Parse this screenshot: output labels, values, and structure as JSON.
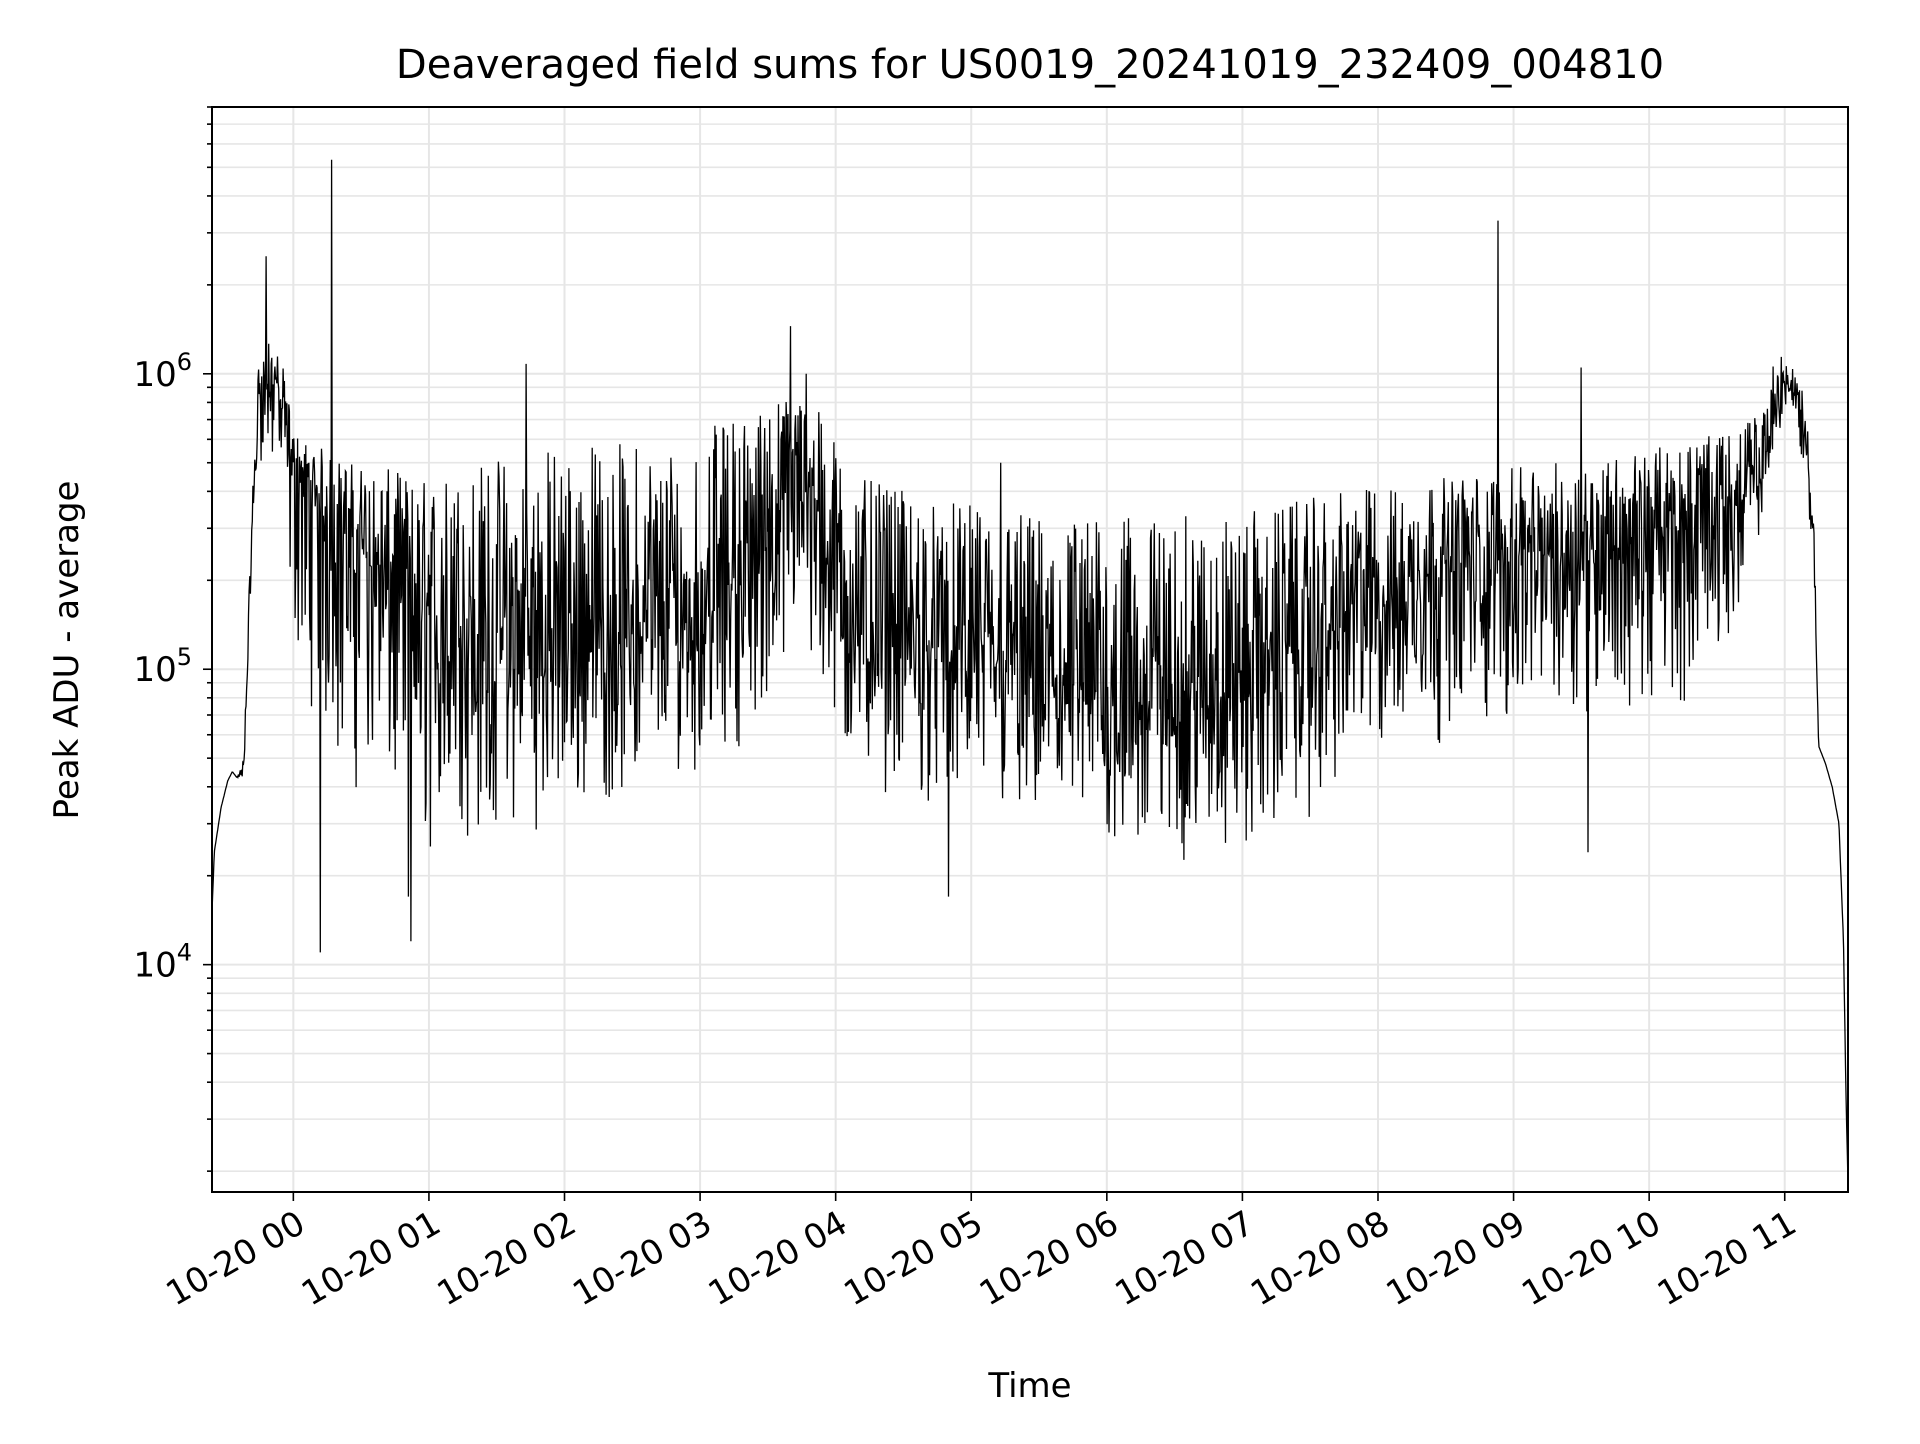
{
  "chart_data": {
    "type": "line",
    "title": "Deaveraged field sums for US0019_20241019_232409_004810",
    "xlabel": "Time",
    "ylabel": "Peak ADU - average",
    "yscale": "log",
    "ylim": [
      1700,
      8000000
    ],
    "xlim": [
      "2024-10-19 23:24",
      "2024-10-20 11:28"
    ],
    "x_ticks": [
      {
        "time": "2024-10-20 00:00",
        "label": "10-20 00"
      },
      {
        "time": "2024-10-20 01:00",
        "label": "10-20 01"
      },
      {
        "time": "2024-10-20 02:00",
        "label": "10-20 02"
      },
      {
        "time": "2024-10-20 03:00",
        "label": "10-20 03"
      },
      {
        "time": "2024-10-20 04:00",
        "label": "10-20 04"
      },
      {
        "time": "2024-10-20 05:00",
        "label": "10-20 05"
      },
      {
        "time": "2024-10-20 06:00",
        "label": "10-20 06"
      },
      {
        "time": "2024-10-20 07:00",
        "label": "10-20 07"
      },
      {
        "time": "2024-10-20 08:00",
        "label": "10-20 08"
      },
      {
        "time": "2024-10-20 09:00",
        "label": "10-20 09"
      },
      {
        "time": "2024-10-20 10:00",
        "label": "10-20 10"
      },
      {
        "time": "2024-10-20 11:00",
        "label": "10-20 11"
      }
    ],
    "y_ticks": [
      {
        "value": 10000,
        "base": "10",
        "exp": "4"
      },
      {
        "value": 100000,
        "base": "10",
        "exp": "5"
      },
      {
        "value": 1000000,
        "base": "10",
        "exp": "6"
      }
    ],
    "grid": true,
    "line_color": "#000000",
    "grid_color": "#e6e6e6",
    "series": [
      {
        "x": [
          "2024-10-19 23:24",
          "2024-10-19 23:25",
          "2024-10-19 23:28",
          "2024-10-19 23:31",
          "2024-10-19 23:33",
          "2024-10-19 23:35",
          "2024-10-19 23:38",
          "2024-10-19 23:41",
          "2024-10-19 23:44",
          "2024-10-19 23:46",
          "2024-10-19 23:50",
          "2024-10-19 23:55",
          "2024-10-20 00:00",
          "2024-10-20 00:05",
          "2024-10-20 00:10",
          "2024-10-20 00:15",
          "2024-10-20 00:20",
          "2024-10-20 00:30",
          "2024-10-20 00:40",
          "2024-10-20 00:50",
          "2024-10-20 00:58",
          "2024-10-20 01:10",
          "2024-10-20 01:30",
          "2024-10-20 02:00",
          "2024-10-20 02:30",
          "2024-10-20 03:00",
          "2024-10-20 03:20",
          "2024-10-20 03:35",
          "2024-10-20 03:45",
          "2024-10-20 03:55",
          "2024-10-20 04:10",
          "2024-10-20 04:30",
          "2024-10-20 05:00",
          "2024-10-20 05:30",
          "2024-10-20 06:00",
          "2024-10-20 06:30",
          "2024-10-20 07:00",
          "2024-10-20 07:30",
          "2024-10-20 08:00",
          "2024-10-20 08:30",
          "2024-10-20 09:00",
          "2024-10-20 09:30",
          "2024-10-20 10:00",
          "2024-10-20 10:20",
          "2024-10-20 10:40",
          "2024-10-20 10:50",
          "2024-10-20 10:55",
          "2024-10-20 11:00",
          "2024-10-20 11:05",
          "2024-10-20 11:10",
          "2024-10-20 11:13",
          "2024-10-20 11:15",
          "2024-10-20 11:18",
          "2024-10-20 11:21",
          "2024-10-20 11:24",
          "2024-10-20 11:26",
          "2024-10-20 11:27",
          "2024-10-20 11:28"
        ],
        "median": [
          15000,
          24000,
          34000,
          42000,
          45000,
          43000,
          45000,
          200000,
          700000,
          900000,
          950000,
          800000,
          480000,
          380000,
          340000,
          320000,
          300000,
          250000,
          190000,
          160000,
          130000,
          120000,
          100000,
          110000,
          120000,
          140000,
          200000,
          300000,
          420000,
          280000,
          130000,
          120000,
          100000,
          85000,
          75000,
          72000,
          85000,
          115000,
          170000,
          210000,
          230000,
          250000,
          260000,
          300000,
          350000,
          450000,
          700000,
          900000,
          820000,
          550000,
          250000,
          55000,
          48000,
          40000,
          30000,
          12000,
          4000,
          1800
        ],
        "low": [
          15000,
          24000,
          34000,
          42000,
          45000,
          43000,
          40000,
          180000,
          450000,
          500000,
          450000,
          350000,
          110000,
          90000,
          60000,
          45000,
          40000,
          35000,
          30000,
          25000,
          20000,
          22000,
          25000,
          30000,
          35000,
          45000,
          55000,
          80000,
          100000,
          50000,
          40000,
          35000,
          30000,
          25000,
          22000,
          20000,
          22000,
          30000,
          45000,
          55000,
          60000,
          70000,
          60000,
          80000,
          150000,
          300000,
          550000,
          700000,
          650000,
          400000,
          200000,
          55000,
          48000,
          40000,
          30000,
          12000,
          4000,
          1800
        ],
        "high": [
          15000,
          24000,
          34000,
          42000,
          45000,
          43000,
          50000,
          250000,
          1100000,
          1200000,
          1300000,
          1100000,
          650000,
          600000,
          580000,
          550000,
          520000,
          500000,
          480000,
          460000,
          450000,
          480000,
          550000,
          600000,
          600000,
          650000,
          750000,
          850000,
          900000,
          700000,
          450000,
          400000,
          360000,
          340000,
          330000,
          330000,
          340000,
          380000,
          420000,
          450000,
          480000,
          520000,
          560000,
          600000,
          650000,
          800000,
          1100000,
          1200000,
          1050000,
          750000,
          300000,
          55000,
          48000,
          40000,
          30000,
          12000,
          4000,
          1800
        ]
      }
    ],
    "spikes": [
      {
        "time": "2024-10-19 23:48",
        "value": 2500000
      },
      {
        "time": "2024-10-20 00:17",
        "value": 5300000
      },
      {
        "time": "2024-10-20 00:12",
        "value": 11000
      },
      {
        "time": "2024-10-20 00:52",
        "value": 12000
      },
      {
        "time": "2024-10-20 00:51",
        "value": 17000
      },
      {
        "time": "2024-10-20 01:43",
        "value": 1080000
      },
      {
        "time": "2024-10-20 03:40",
        "value": 1450000
      },
      {
        "time": "2024-10-20 03:47",
        "value": 1000000
      },
      {
        "time": "2024-10-20 04:50",
        "value": 17000
      },
      {
        "time": "2024-10-20 05:13",
        "value": 500000
      },
      {
        "time": "2024-10-20 08:53",
        "value": 3300000
      },
      {
        "time": "2024-10-20 09:30",
        "value": 1050000
      },
      {
        "time": "2024-10-20 09:33",
        "value": 24000
      }
    ]
  }
}
